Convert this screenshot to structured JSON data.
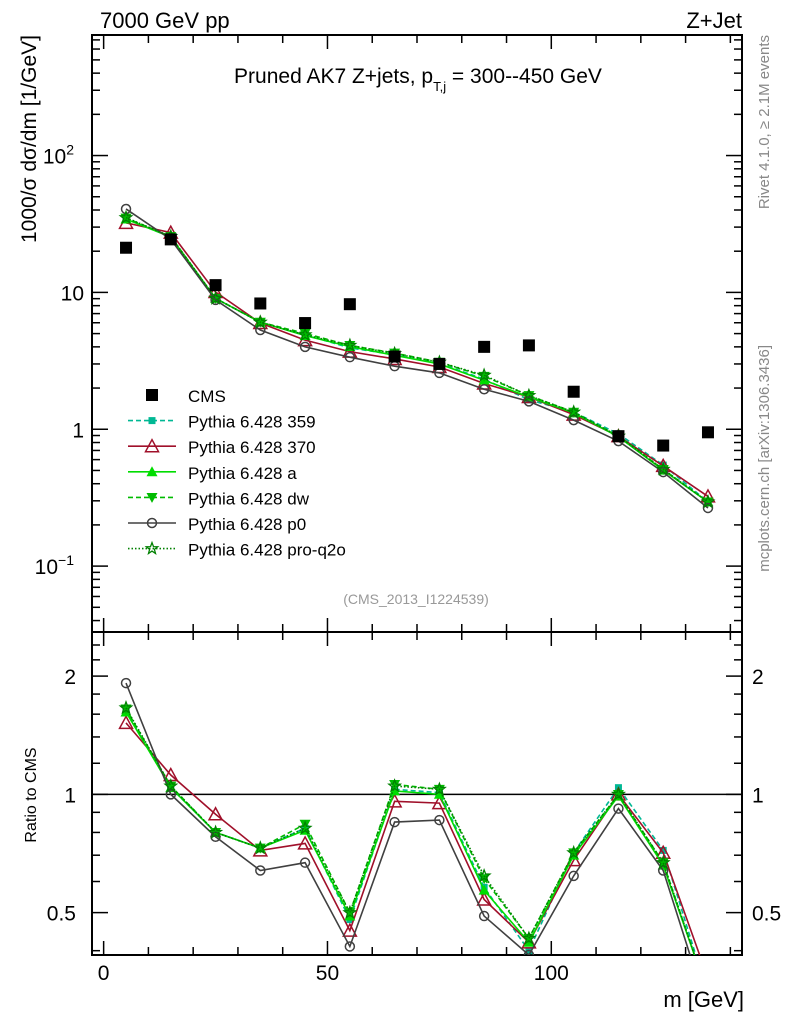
{
  "chart_data": {
    "type": "line",
    "header_left": "7000 GeV pp",
    "header_right": "Z+Jet",
    "title": "Pruned AK7 Z+jets, p",
    "title_sub": "T,j",
    "title_tail": " = 300--450 GeV",
    "ylabel": "1000/σ  dσ/dm [1/GeV]",
    "ratio_ylabel": "Ratio to CMS",
    "xlabel": "m [GeV]",
    "side_label_top": "Rivet 4.1.0, ≥ 2.1M events",
    "side_label_bottom": "mcplots.cern.ch [arXiv:1306.3436]",
    "analysis_label": "(CMS_2013_I1224539)",
    "xlim": [
      -2.6,
      142.6
    ],
    "ylim": [
      0.033,
      760
    ],
    "yscale": "log",
    "ratio_ylim": [
      0.39,
      2.59
    ],
    "x_ticks": [
      "0",
      "50",
      "100"
    ],
    "x_tick_values": [
      0,
      50,
      100
    ],
    "y_ticks": [
      {
        "label": "10",
        "sup": "−1",
        "value": 0.1
      },
      {
        "label": "1",
        "sup": "",
        "value": 1
      },
      {
        "label": "10",
        "sup": "",
        "value": 10
      },
      {
        "label": "10",
        "sup": "2",
        "value": 100
      }
    ],
    "ratio_ticks": [
      {
        "label": "0.5",
        "value": 0.5
      },
      {
        "label": "1",
        "value": 1
      },
      {
        "label": "2",
        "value": 2
      }
    ],
    "legend_position": "left-middle",
    "x": [
      5,
      15,
      25,
      35,
      45,
      55,
      65,
      75,
      85,
      95,
      105,
      115,
      125,
      135
    ],
    "data": {
      "name": "CMS",
      "values": [
        21.2,
        24.4,
        11.3,
        8.3,
        5.97,
        8.2,
        3.4,
        3.0,
        4.0,
        4.1,
        1.88,
        0.89,
        0.76,
        0.95
      ]
    },
    "series_note": "main-panel MC values = ratio × CMS",
    "series": [
      {
        "name": "Pythia 6.428 359",
        "color": "#00b894",
        "dash": "5,3",
        "marker": "square",
        "ratio": [
          1.63,
          1.04,
          0.8,
          0.73,
          0.82,
          0.48,
          1.03,
          1.01,
          0.58,
          0.4,
          0.71,
          1.04,
          0.72,
          0.31
        ]
      },
      {
        "name": "Pythia 6.428 370",
        "color": "#a0102a",
        "dash": "",
        "marker": "open-triangle",
        "ratio": [
          1.52,
          1.12,
          0.89,
          0.72,
          0.75,
          0.45,
          0.96,
          0.95,
          0.54,
          0.42,
          0.68,
          1.0,
          0.71,
          0.34
        ]
      },
      {
        "name": "Pythia 6.428 a",
        "color": "#00dd00",
        "dash": "",
        "marker": "triangle",
        "ratio": [
          1.62,
          1.04,
          0.8,
          0.73,
          0.81,
          0.49,
          1.02,
          1.0,
          0.57,
          0.42,
          0.7,
          0.99,
          0.66,
          0.31
        ]
      },
      {
        "name": "Pythia 6.428 dw",
        "color": "#00bb00",
        "dash": "5,3",
        "marker": "inv-triangle",
        "ratio": [
          1.65,
          1.05,
          0.8,
          0.73,
          0.84,
          0.5,
          1.06,
          1.03,
          0.61,
          0.43,
          0.71,
          1.0,
          0.67,
          0.31
        ]
      },
      {
        "name": "Pythia 6.428 p0",
        "color": "#404040",
        "dash": "",
        "marker": "open-circle",
        "ratio": [
          1.92,
          1.0,
          0.78,
          0.64,
          0.67,
          0.41,
          0.85,
          0.86,
          0.49,
          0.39,
          0.62,
          0.92,
          0.64,
          0.28
        ]
      },
      {
        "name": "Pythia 6.428 pro-q2o",
        "color": "#008000",
        "dash": "1.5,2",
        "marker": "star",
        "ratio": [
          1.66,
          1.05,
          0.8,
          0.73,
          0.82,
          0.5,
          1.05,
          1.03,
          0.62,
          0.43,
          0.71,
          1.0,
          0.67,
          0.31
        ]
      }
    ]
  }
}
